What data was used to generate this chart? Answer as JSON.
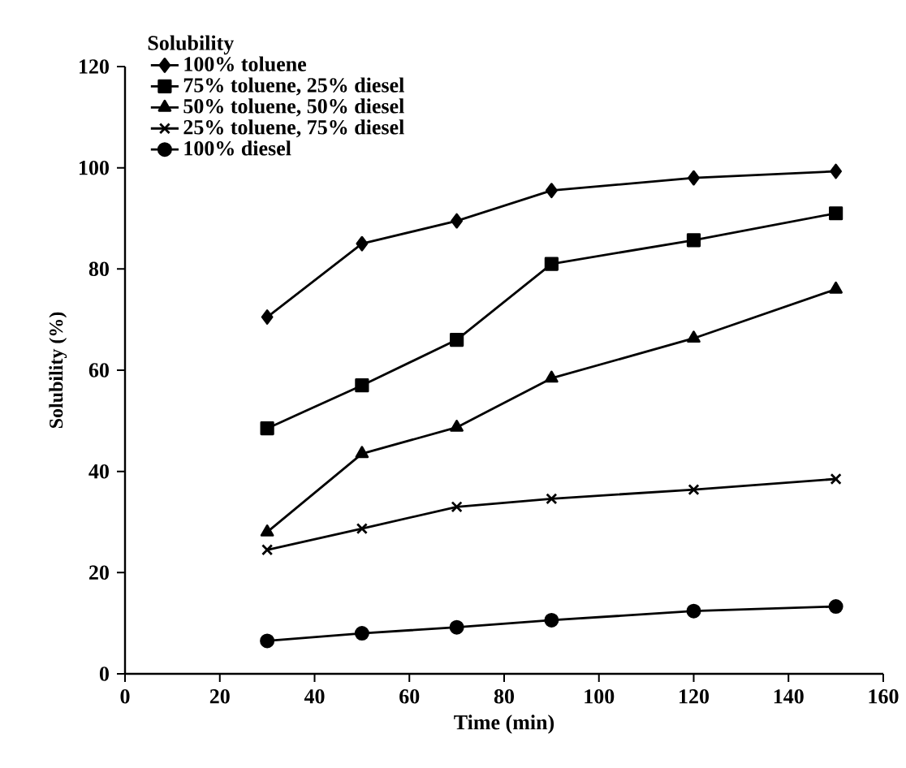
{
  "chart_data": {
    "type": "line",
    "xlabel": "Time (min)",
    "ylabel": "Solubility (%)",
    "legend_title": "Solubility",
    "legend": "top left",
    "grid": false,
    "x": [
      30,
      50,
      70,
      90,
      120,
      150
    ],
    "xlim": [
      0,
      160
    ],
    "xticks": [
      0,
      20,
      40,
      60,
      80,
      100,
      120,
      140,
      160
    ],
    "ylim": [
      0,
      120
    ],
    "yticks": [
      0,
      20,
      40,
      60,
      80,
      100,
      120
    ],
    "series": [
      {
        "name": "100% toluene",
        "color": "#000000",
        "marker": "diamond",
        "values": [
          70.5,
          85,
          89.5,
          95.5,
          98,
          99.3
        ]
      },
      {
        "name": "75% toluene, 25% diesel",
        "color": "#000000",
        "marker": "square",
        "values": [
          48.5,
          57,
          66,
          81,
          85.7,
          91
        ]
      },
      {
        "name": "50% toluene, 50% diesel",
        "color": "#000000",
        "marker": "triangle",
        "values": [
          28,
          43.5,
          48.7,
          58.4,
          66.3,
          76
        ]
      },
      {
        "name": "25% toluene, 75% diesel",
        "color": "#000000",
        "marker": "cross",
        "values": [
          24.5,
          28.7,
          33,
          34.6,
          36.4,
          38.5
        ]
      },
      {
        "name": "100% diesel",
        "color": "#000000",
        "marker": "circle",
        "values": [
          6.5,
          8,
          9.2,
          10.6,
          12.4,
          13.3
        ]
      }
    ]
  }
}
